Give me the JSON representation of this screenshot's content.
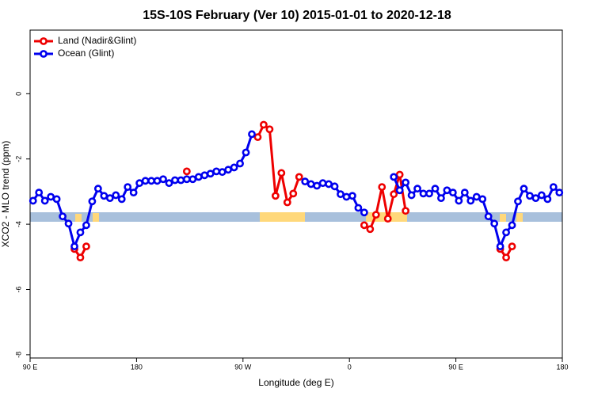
{
  "chart_data": {
    "type": "line",
    "title": "15S-10S February (Ver 10)   2015-01-01 to 2020-12-18",
    "x_label": "Longitude (deg E)",
    "y_label": "XCO2 - MLO trend (ppm)",
    "xlim": [
      90,
      540
    ],
    "ylim": [
      -8.1,
      1.95
    ],
    "xticks": [
      {
        "value": 90,
        "label": "90 E"
      },
      180,
      {
        "value": 270,
        "label": "90 W"
      },
      {
        "value": 360,
        "label": "0"
      },
      {
        "value": 450,
        "label": "90 E"
      },
      {
        "value": 540,
        "label": "180"
      }
    ],
    "yticks": [
      0,
      -2,
      -4,
      -6,
      -8
    ],
    "legend": "top-left",
    "series": [
      {
        "name": "Land (Nadir&Glint)",
        "color": "#ee0000",
        "x": [
          127.5,
          132.5,
          137.5,
          142.5,
          222.5,
          227.5,
          282.5,
          287.5,
          292.5,
          297.5,
          302.5,
          307.5,
          312.5,
          317.5,
          322.5,
          372.5,
          377.5,
          382.5,
          387.5,
          392.5,
          397.5,
          402.5,
          407.5,
          412.5,
          487.5,
          492.5,
          497.5
        ],
        "values": [
          -4.76,
          -5.02,
          -4.68,
          null,
          -2.38,
          null,
          -1.33,
          -0.95,
          -1.09,
          -3.13,
          -2.43,
          -3.33,
          -3.06,
          -2.55,
          null,
          -4.03,
          -4.15,
          -3.71,
          -2.86,
          -3.83,
          -3.08,
          -2.48,
          -3.59,
          null,
          -4.76,
          -5.02,
          -4.68
        ]
      },
      {
        "name": "Ocean (Glint)",
        "color": "#0000ee",
        "x": [
          92.5,
          97.5,
          102.5,
          107.5,
          112.5,
          117.5,
          122.5,
          127.5,
          132.5,
          137.5,
          142.5,
          147.5,
          152.5,
          157.5,
          162.5,
          167.5,
          172.5,
          177.5,
          182.5,
          187.5,
          192.5,
          197.5,
          202.5,
          207.5,
          212.5,
          217.5,
          222.5,
          227.5,
          232.5,
          237.5,
          242.5,
          247.5,
          252.5,
          257.5,
          262.5,
          267.5,
          272.5,
          277.5,
          282.5,
          287.5,
          292.5,
          297.5,
          302.5,
          307.5,
          312.5,
          317.5,
          322.5,
          327.5,
          332.5,
          337.5,
          342.5,
          347.5,
          352.5,
          357.5,
          362.5,
          367.5,
          372.5,
          377.5,
          382.5,
          387.5,
          392.5,
          397.5,
          402.5,
          407.5,
          412.5,
          417.5,
          422.5,
          427.5,
          432.5,
          437.5,
          442.5,
          447.5,
          452.5,
          457.5,
          462.5,
          467.5,
          472.5,
          477.5,
          482.5,
          487.5,
          492.5,
          497.5,
          502.5,
          507.5,
          512.5,
          517.5,
          522.5,
          527.5,
          532.5,
          537.5
        ],
        "values": [
          -3.28,
          -3.03,
          -3.28,
          -3.16,
          -3.23,
          -3.76,
          -3.98,
          -4.68,
          -4.25,
          -4.03,
          -3.3,
          -2.91,
          -3.13,
          -3.2,
          -3.11,
          -3.23,
          -2.86,
          -3.03,
          -2.74,
          -2.67,
          -2.67,
          -2.67,
          -2.62,
          -2.74,
          -2.65,
          -2.65,
          -2.62,
          -2.62,
          -2.55,
          -2.5,
          -2.45,
          -2.38,
          -2.4,
          -2.33,
          -2.26,
          -2.14,
          -1.8,
          -1.24,
          null,
          null,
          null,
          null,
          null,
          null,
          null,
          null,
          -2.69,
          -2.77,
          -2.82,
          -2.74,
          -2.77,
          -2.84,
          -3.08,
          -3.16,
          -3.13,
          -3.5,
          -3.64,
          null,
          null,
          null,
          null,
          -2.55,
          -2.96,
          -2.72,
          -3.11,
          -2.91,
          -3.06,
          -3.06,
          -2.91,
          -3.2,
          -2.96,
          -3.03,
          -3.28,
          -3.03,
          -3.28,
          -3.16,
          -3.23,
          -3.76,
          -3.98,
          -4.68,
          -4.25,
          -4.03,
          -3.3,
          -2.91,
          -3.13,
          -3.2,
          -3.11,
          -3.23,
          -2.86,
          -3.03
        ]
      }
    ]
  }
}
